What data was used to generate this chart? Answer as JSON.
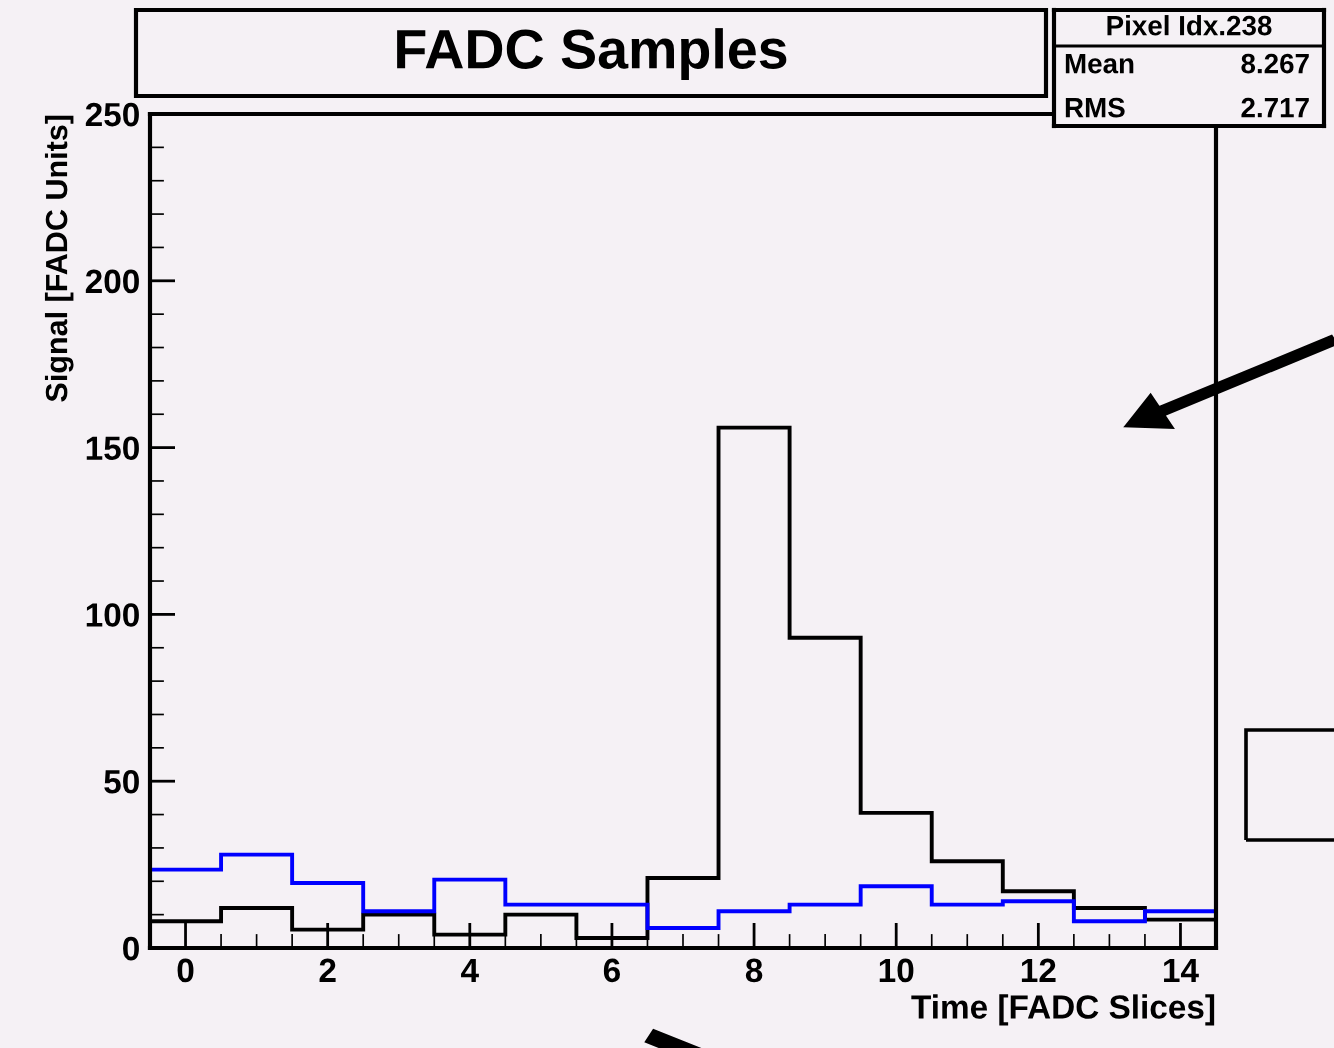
{
  "chart_data": {
    "type": "histogram",
    "title": "FADC Samples",
    "xlabel": "Time [FADC Slices]",
    "ylabel": "Signal [FADC Units]",
    "annotations": [
      "Pixel Idx.238",
      "Mean",
      "8.267",
      "RMS",
      "2.717"
    ],
    "bins": [
      -0.5,
      0.5,
      1.5,
      2.5,
      3.5,
      4.5,
      5.5,
      6.5,
      7.5,
      8.5,
      9.5,
      10.5,
      11.5,
      12.5,
      13.5,
      14.5
    ],
    "series": [
      {
        "color": "#000000",
        "values": [
          8,
          12,
          5.5,
          10,
          4,
          10,
          3,
          21,
          156,
          93,
          40.5,
          26,
          17,
          12,
          8.5
        ]
      },
      {
        "color": "#0000ff",
        "values": [
          23.5,
          28,
          19.5,
          11,
          20.5,
          13,
          13,
          6,
          11,
          13,
          18.5,
          13,
          14,
          8,
          11
        ]
      }
    ],
    "xlim": [
      -0.5,
      14.5
    ],
    "xticks": [
      0,
      2,
      4,
      6,
      8,
      10,
      12,
      14
    ],
    "ylim": [
      0,
      250
    ],
    "yticks": [
      0,
      50,
      100,
      150,
      200,
      250
    ],
    "grid": false,
    "legend": false
  }
}
